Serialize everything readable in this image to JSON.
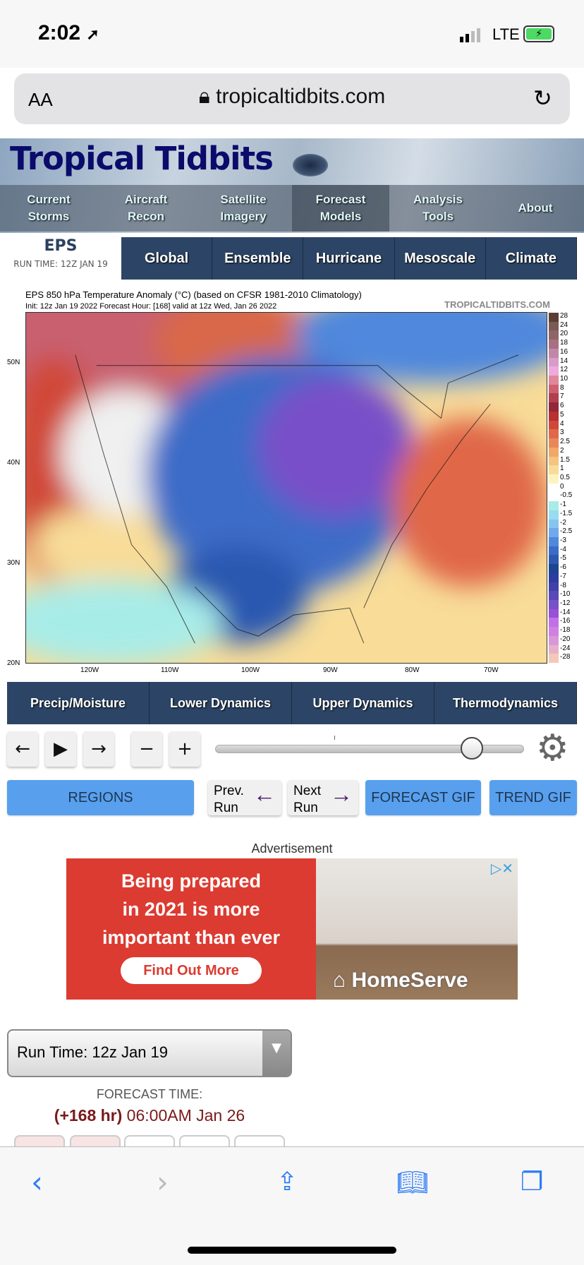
{
  "status": {
    "time": "2:02",
    "network": "LTE",
    "icons": [
      "location-arrow-icon",
      "signal-icon",
      "battery-charging-icon"
    ]
  },
  "browser": {
    "text_size": "AA",
    "url": "tropicaltidbits.com",
    "icons": [
      "lock-icon",
      "reload-icon"
    ]
  },
  "site": {
    "logo": "Tropical Tidbits",
    "nav": [
      {
        "l1": "Current",
        "l2": "Storms"
      },
      {
        "l1": "Aircraft",
        "l2": "Recon"
      },
      {
        "l1": "Satellite",
        "l2": "Imagery"
      },
      {
        "l1": "Forecast",
        "l2": "Models"
      },
      {
        "l1": "Analysis",
        "l2": "Tools"
      },
      {
        "l1": "About",
        "l2": ""
      }
    ],
    "active_nav": "Forecast Models"
  },
  "model": {
    "name": "EPS",
    "run_time": "RUN TIME: 12Z JAN 19",
    "tabs": [
      "Global",
      "Ensemble",
      "Hurricane",
      "Mesoscale",
      "Climate"
    ]
  },
  "map": {
    "title": "EPS 850 hPa Temperature Anomaly (°C) (based on CFSR 1981-2010 Climatology)",
    "init": "Init: 12z Jan 19 2022   Forecast Hour: [168]   valid at 12z Wed, Jan 26 2022",
    "watermark": "TROPICALTIDBITS.COM",
    "lon_labels": [
      "120W",
      "110W",
      "100W",
      "90W",
      "80W",
      "70W"
    ],
    "lat_labels": [
      "50N",
      "40N",
      "30N",
      "20N"
    ],
    "colorbar_labels": [
      "28",
      "24",
      "20",
      "18",
      "16",
      "14",
      "12",
      "10",
      "8",
      "7",
      "6",
      "5",
      "4",
      "3",
      "2.5",
      "2",
      "1.5",
      "1",
      "0.5",
      "0",
      "-0.5",
      "-1",
      "-1.5",
      "-2",
      "-2.5",
      "-3",
      "-4",
      "-5",
      "-6",
      "-7",
      "-8",
      "-10",
      "-12",
      "-14",
      "-16",
      "-18",
      "-20",
      "-24",
      "-28"
    ],
    "colorbar_colors": [
      "#5a3e36",
      "#7a5a52",
      "#8f6468",
      "#a87080",
      "#c088a8",
      "#d89cc8",
      "#eeaadd",
      "#e08898",
      "#cc6070",
      "#b04050",
      "#902838",
      "#b83030",
      "#d04838",
      "#e06848",
      "#e88858",
      "#f0a868",
      "#f4c480",
      "#f8dc98",
      "#fcf4c0",
      "#ffffff",
      "#ffffff",
      "#a8ece8",
      "#98dcf0",
      "#88c4f0",
      "#70a8ec",
      "#5088dc",
      "#3c6cc8",
      "#2c58b0",
      "#1c4490",
      "#2c3ca0",
      "#4040a8",
      "#5848b8",
      "#7850c8",
      "#9850d8",
      "#c070e8",
      "#d080e0",
      "#d898d8",
      "#e8b0c8",
      "#f4c8b8"
    ]
  },
  "categories": [
    "Precip/Moisture",
    "Lower Dynamics",
    "Upper Dynamics",
    "Thermodynamics"
  ],
  "controls": {
    "prev": "←",
    "play": "▶",
    "next": "→",
    "minus": "−",
    "plus": "+",
    "slider_position_fraction": 0.83
  },
  "buttons": {
    "regions": "REGIONS",
    "prev_run_1": "Prev.",
    "prev_run_2": "Run",
    "next_run_1": "Next",
    "next_run_2": "Run",
    "forecast_gif": "FORECAST GIF",
    "trend_gif": "TREND GIF"
  },
  "ad": {
    "label": "Advertisement",
    "headline1": "Being prepared",
    "headline2": "in 2021 is more",
    "headline3": "important than ever",
    "cta": "Find Out More",
    "brand": "HomeServe"
  },
  "run_select": {
    "value": "Run Time: 12z Jan 19"
  },
  "forecast": {
    "label": "FORECAST TIME:",
    "hour": "(+168 hr)",
    "datetime": " 06:00AM Jan 26"
  },
  "toolbar": {
    "icons": [
      "back-icon",
      "forward-icon",
      "share-icon",
      "bookmarks-icon",
      "tabs-icon"
    ]
  }
}
